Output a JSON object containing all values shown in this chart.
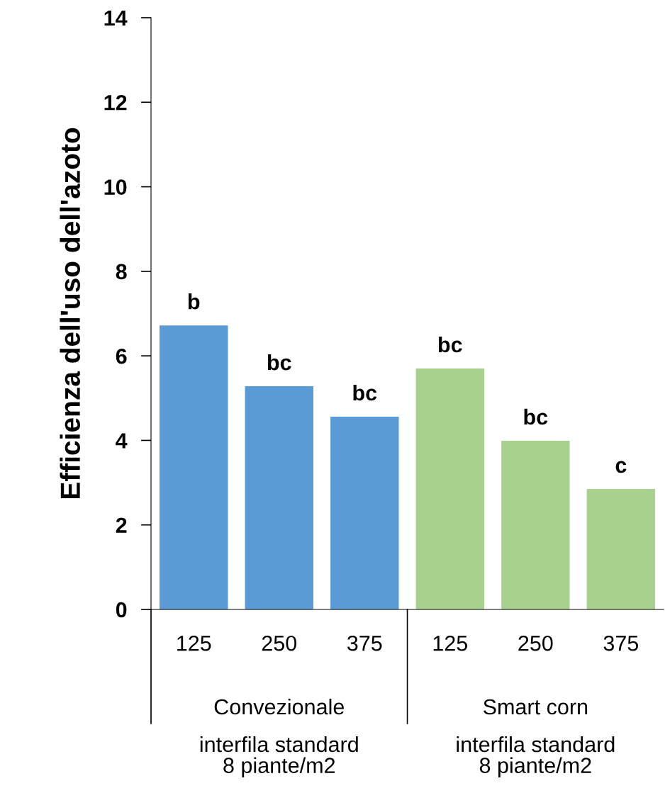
{
  "chart_data": {
    "type": "bar",
    "ylabel": "Efficienza dell'uso dell'azoto",
    "categories": [
      "125",
      "250",
      "375",
      "125",
      "250",
      "375"
    ],
    "values": [
      6.72,
      5.28,
      4.56,
      5.7,
      3.99,
      2.85
    ],
    "colors": [
      "#5b9bd5",
      "#5b9bd5",
      "#5b9bd5",
      "#a9d18e",
      "#a9d18e",
      "#a9d18e"
    ],
    "value_labels": [
      "b",
      "bc",
      "bc",
      "bc",
      "bc",
      "c"
    ],
    "ylim": [
      0,
      14
    ],
    "yticks": [
      0,
      2,
      4,
      6,
      8,
      10,
      12,
      14
    ],
    "grid": false,
    "annotations": [
      "Convezionale",
      "Smart corn",
      "interfila standard\n8 piante/m2",
      "interfila standard\n8 piante/m2"
    ]
  }
}
